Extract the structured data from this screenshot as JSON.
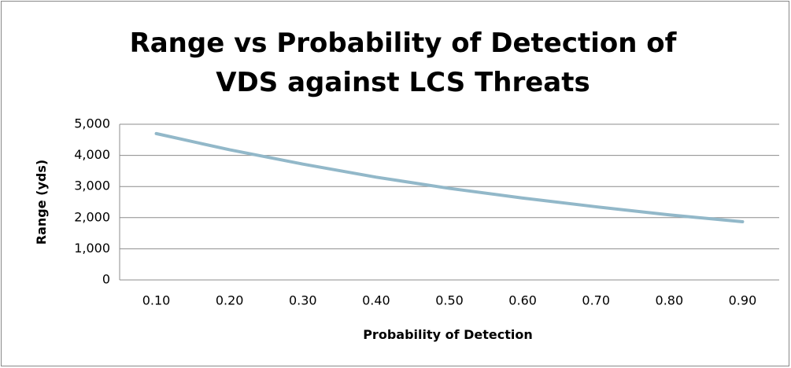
{
  "chart_data": {
    "type": "line",
    "title": "Range vs Probability of Detection of",
    "subtitle": "VDS against LCS Threats",
    "x_label": "Probability of Detection",
    "y_label": "Range (yds)",
    "categories": [
      "0.10",
      "0.20",
      "0.30",
      "0.40",
      "0.50",
      "0.60",
      "0.70",
      "0.80",
      "0.90"
    ],
    "series": [
      {
        "name": "Range",
        "color": "#92b8c9",
        "values": [
          4700,
          4180,
          3720,
          3300,
          2940,
          2630,
          2350,
          2090,
          1870
        ]
      }
    ],
    "ylim": [
      0,
      5000
    ],
    "yticks": [
      0,
      {
        "value": 1000,
        "label": "1,000"
      },
      {
        "value": 2000,
        "label": "2,000"
      },
      {
        "value": 3000,
        "label": "3,000"
      },
      {
        "value": 4000,
        "label": "4,000"
      },
      {
        "value": 5000,
        "label": "5,000"
      }
    ],
    "grid": true
  }
}
